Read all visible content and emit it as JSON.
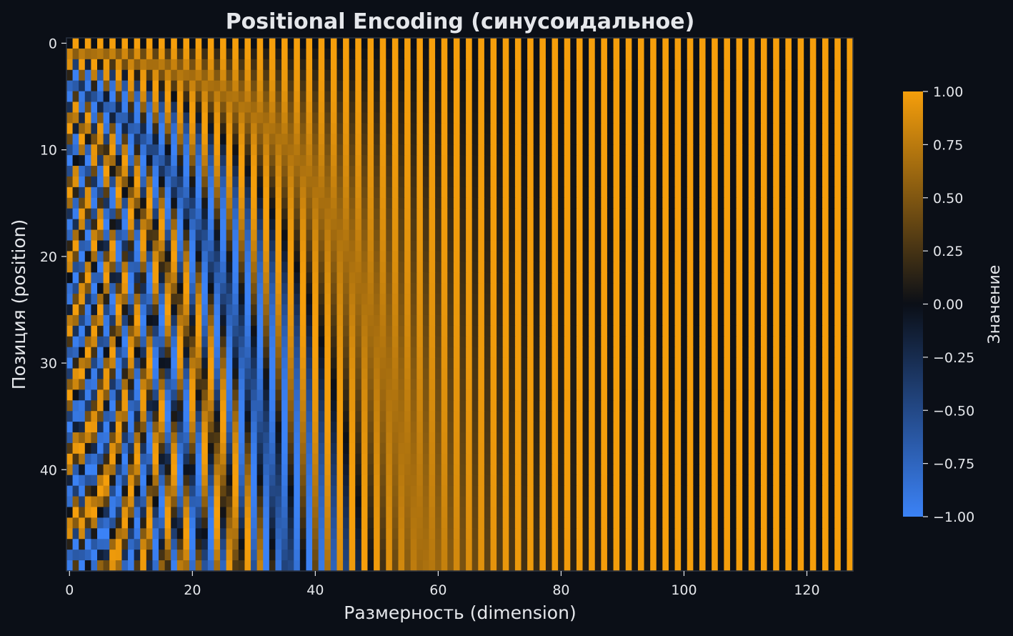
{
  "colors": {
    "background": "#0b0f17",
    "text": "#e5e7eb",
    "negative": "#3b82f6",
    "zero": "#0b0f17",
    "positive": "#f59e0b",
    "frame": "#2b3342"
  },
  "chart_data": {
    "type": "heatmap",
    "title": "Positional Encoding (синусоидальное)",
    "xlabel": "Размерность (dimension)",
    "ylabel": "Позиция (position)",
    "colorbar_label": "Значение",
    "n_positions": 50,
    "d_model": 128,
    "formula": "even dimension 2i: sin(pos / 10000^(2i/128)); odd dimension 2i+1: cos(pos / 10000^(2i/128))",
    "xlim": [
      0,
      127
    ],
    "ylim": [
      0,
      49
    ],
    "y_direction": "top-to-bottom",
    "x_ticks": [
      0,
      20,
      40,
      60,
      80,
      100,
      120
    ],
    "x_tick_labels": [
      "0",
      "20",
      "40",
      "60",
      "80",
      "100",
      "120"
    ],
    "y_ticks": [
      0,
      10,
      20,
      30,
      40
    ],
    "y_tick_labels": [
      "0",
      "10",
      "20",
      "30",
      "40"
    ],
    "vmin": -1,
    "vmax": 1,
    "colorbar_ticks": [
      1.0,
      0.75,
      0.5,
      0.25,
      0.0,
      -0.25,
      -0.5,
      -0.75,
      -1.0
    ],
    "colorbar_tick_labels": [
      "1.00",
      "0.75",
      "0.50",
      "0.25",
      "0.00",
      "−0.25",
      "−0.50",
      "−0.75",
      "−1.00"
    ],
    "grid": false,
    "colorbar_position": "right"
  }
}
